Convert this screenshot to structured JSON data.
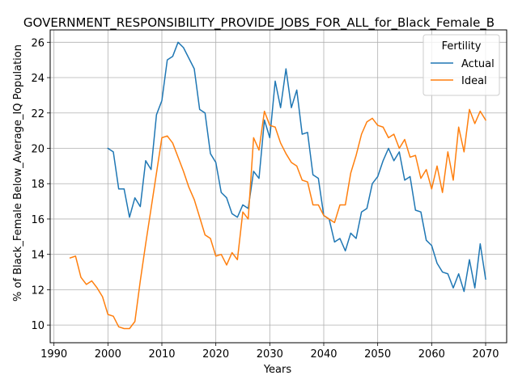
{
  "chart_data": {
    "type": "line",
    "title": "GOVERNMENT_RESPONSIBILITY_PROVIDE_JOBS_FOR_ALL_for_Black_Female_B",
    "xlabel": "Years",
    "ylabel": "% of Black_Female Below_Average_IQ Population",
    "xlim": [
      1989.3,
      2073.9
    ],
    "ylim": [
      9.0,
      26.7
    ],
    "xticks": [
      1990,
      2000,
      2010,
      2020,
      2030,
      2040,
      2050,
      2060,
      2070
    ],
    "yticks": [
      10,
      12,
      14,
      16,
      18,
      20,
      22,
      24,
      26
    ],
    "grid": true,
    "legend": {
      "title": "Fertility",
      "position": "top-right"
    },
    "series": [
      {
        "name": "Actual",
        "color": "#1f77b4",
        "x": [
          2000,
          2001,
          2002,
          2003,
          2004,
          2005,
          2006,
          2007,
          2008,
          2009,
          2010,
          2011,
          2012,
          2013,
          2014,
          2015,
          2016,
          2017,
          2018,
          2019,
          2020,
          2021,
          2022,
          2023,
          2024,
          2025,
          2026,
          2027,
          2028,
          2029,
          2030,
          2031,
          2032,
          2033,
          2034,
          2035,
          2036,
          2037,
          2038,
          2039,
          2040,
          2041,
          2042,
          2043,
          2044,
          2045,
          2046,
          2047,
          2048,
          2049,
          2050,
          2051,
          2052,
          2053,
          2054,
          2055,
          2056,
          2057,
          2058,
          2059,
          2060,
          2061,
          2062,
          2063,
          2064,
          2065,
          2066,
          2067,
          2068,
          2069,
          2070
        ],
        "values": [
          20.0,
          19.8,
          17.7,
          17.7,
          16.1,
          17.2,
          16.7,
          19.3,
          18.8,
          21.9,
          22.7,
          25.0,
          25.2,
          26.0,
          25.7,
          25.1,
          24.5,
          22.2,
          22.0,
          19.7,
          19.2,
          17.5,
          17.2,
          16.3,
          16.1,
          16.8,
          16.6,
          18.7,
          18.3,
          21.6,
          20.6,
          23.8,
          22.3,
          24.5,
          22.3,
          23.3,
          20.8,
          20.9,
          18.5,
          18.3,
          16.2,
          16.0,
          14.7,
          14.9,
          14.2,
          15.2,
          14.9,
          16.4,
          16.6,
          18.0,
          18.4,
          19.3,
          20.0,
          19.3,
          19.8,
          18.2,
          18.4,
          16.5,
          16.4,
          14.8,
          14.5,
          13.5,
          13.0,
          12.9,
          12.1,
          12.9,
          11.9,
          13.7,
          12.1,
          14.6,
          12.6
        ]
      },
      {
        "name": "Ideal",
        "color": "#ff7f0e",
        "x": [
          1993,
          1994,
          1995,
          1996,
          1997,
          1998,
          1999,
          2000,
          2001,
          2002,
          2003,
          2004,
          2005,
          2006,
          2007,
          2008,
          2009,
          2010,
          2011,
          2012,
          2013,
          2014,
          2015,
          2016,
          2017,
          2018,
          2019,
          2020,
          2021,
          2022,
          2023,
          2024,
          2025,
          2026,
          2027,
          2028,
          2029,
          2030,
          2031,
          2032,
          2033,
          2034,
          2035,
          2036,
          2037,
          2038,
          2039,
          2040,
          2041,
          2042,
          2043,
          2044,
          2045,
          2046,
          2047,
          2048,
          2049,
          2050,
          2051,
          2052,
          2053,
          2054,
          2055,
          2056,
          2057,
          2058,
          2059,
          2060,
          2061,
          2062,
          2063,
          2064,
          2065,
          2066,
          2067,
          2068,
          2069,
          2070
        ],
        "values": [
          13.8,
          13.9,
          12.7,
          12.3,
          12.5,
          12.1,
          11.6,
          10.6,
          10.5,
          9.9,
          9.8,
          9.8,
          10.2,
          12.5,
          14.6,
          16.6,
          18.6,
          20.6,
          20.7,
          20.3,
          19.5,
          18.7,
          17.8,
          17.1,
          16.1,
          15.1,
          14.9,
          13.9,
          14.0,
          13.4,
          14.1,
          13.7,
          16.4,
          16.0,
          20.6,
          19.9,
          22.1,
          21.3,
          21.2,
          20.3,
          19.7,
          19.2,
          19.0,
          18.2,
          18.1,
          16.8,
          16.8,
          16.2,
          16.0,
          15.8,
          16.8,
          16.8,
          18.6,
          19.6,
          20.8,
          21.5,
          21.7,
          21.3,
          21.2,
          20.6,
          20.8,
          20.0,
          20.5,
          19.5,
          19.6,
          18.3,
          18.8,
          17.7,
          19.0,
          17.5,
          19.8,
          18.2,
          21.2,
          19.8,
          22.2,
          21.4,
          22.1,
          21.6
        ]
      }
    ]
  }
}
